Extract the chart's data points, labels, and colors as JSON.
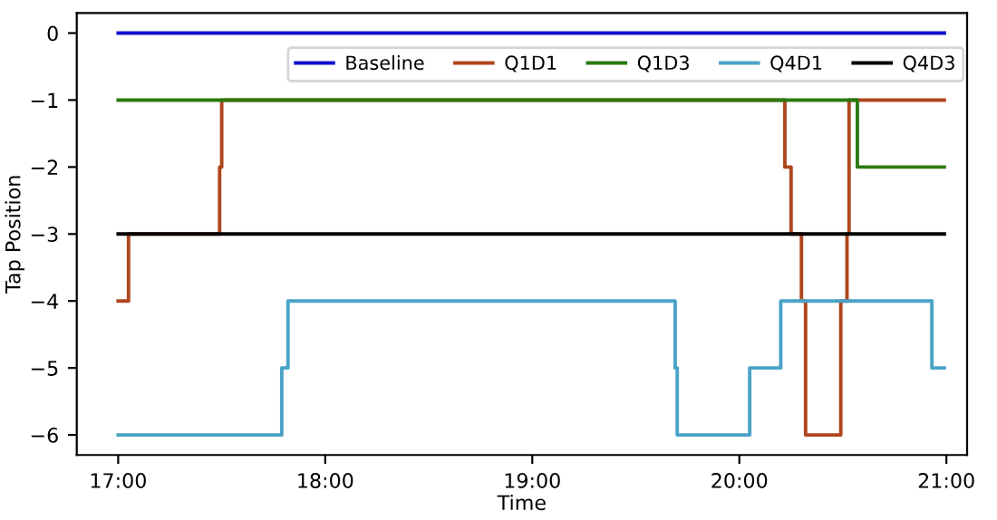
{
  "chart_data": {
    "type": "step",
    "xlabel": "Time",
    "ylabel": "Tap Position",
    "xlim": [
      16.8,
      21.1
    ],
    "ylim": [
      -6.3,
      0.3
    ],
    "xticks": [
      {
        "value": 17,
        "label": "17:00"
      },
      {
        "value": 18,
        "label": "18:00"
      },
      {
        "value": 19,
        "label": "19:00"
      },
      {
        "value": 20,
        "label": "20:00"
      },
      {
        "value": 21,
        "label": "21:00"
      }
    ],
    "yticks": [
      0,
      -1,
      -2,
      -3,
      -4,
      -5,
      -6
    ],
    "grid": false,
    "legend": "top right",
    "marker": "none",
    "line_style": "solid",
    "series": [
      {
        "name": "Baseline",
        "color": "#1010d0",
        "x": [
          17,
          20.99
        ],
        "values": [
          0,
          0
        ]
      },
      {
        "name": "Q1D1",
        "color": "#b0461e",
        "x": [
          17,
          17.05,
          17.49,
          17.5,
          20.22,
          20.25,
          20.3,
          20.32,
          20.49,
          20.52,
          20.53,
          20.99
        ],
        "values": [
          -4,
          -3,
          -2,
          -1,
          -2,
          -3,
          -4,
          -6,
          -4,
          -3,
          -1,
          -1
        ]
      },
      {
        "name": "Q1D3",
        "color": "#2a7a10",
        "x": [
          17,
          20.57,
          20.99
        ],
        "values": [
          -1,
          -2,
          -2
        ]
      },
      {
        "name": "Q4D1",
        "color": "#4aa3c6",
        "x": [
          17,
          17.79,
          17.82,
          19.69,
          19.7,
          20.05,
          20.2,
          20.93,
          20.99
        ],
        "values": [
          -6,
          -5,
          -4,
          -5,
          -6,
          -5,
          -4,
          -5,
          -5
        ]
      },
      {
        "name": "Q4D3",
        "color": "#000000",
        "x": [
          17,
          20.99
        ],
        "values": [
          -3,
          -3
        ]
      }
    ]
  }
}
